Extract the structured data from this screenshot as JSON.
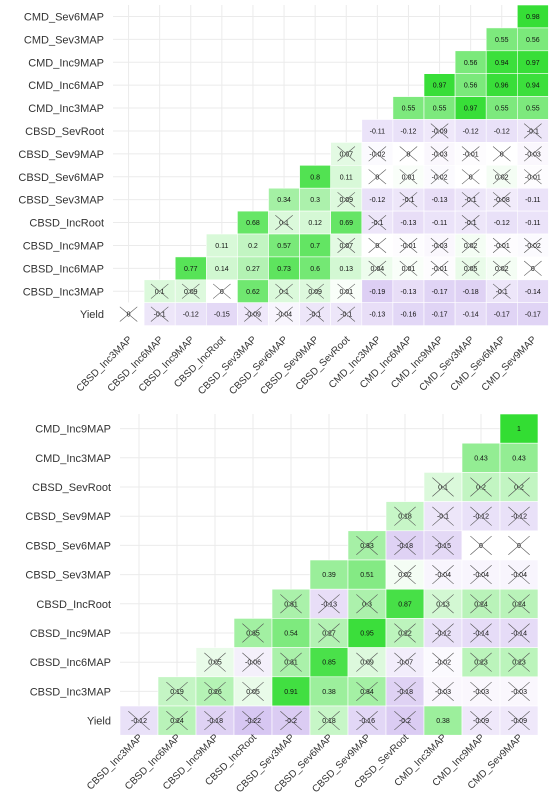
{
  "chart_data": [
    {
      "type": "heatmap",
      "title": "",
      "xlabel": "",
      "ylabel": "",
      "colors": {
        "positive": "#33dd33",
        "negative": "#a07ae0",
        "zero": "#ffffff"
      },
      "x_categories": [
        "CBSD_Inc3MAP",
        "CBSD_Inc6MAP",
        "CBSD_Inc9MAP",
        "CBSD_IncRoot",
        "CBSD_Sev3MAP",
        "CBSD_Sev6MAP",
        "CBSD_Sev9MAP",
        "CBSD_SevRoot",
        "CMD_Inc3MAP",
        "CMD_Inc6MAP",
        "CMD_Inc9MAP",
        "CMD_Sev3MAP",
        "CMD_Sev6MAP",
        "CMD_Sev9MAP"
      ],
      "y_categories": [
        "CMD_Sev6MAP",
        "CMD_Sev3MAP",
        "CMD_Inc9MAP",
        "CMD_Inc6MAP",
        "CMD_Inc3MAP",
        "CBSD_SevRoot",
        "CBSD_Sev9MAP",
        "CBSD_Sev6MAP",
        "CBSD_Sev3MAP",
        "CBSD_IncRoot",
        "CBSD_Inc9MAP",
        "CBSD_Inc6MAP",
        "CBSD_Inc3MAP",
        "Yield"
      ],
      "rows": [
        {
          "label": "CMD_Sev6MAP",
          "start": 13,
          "values": [
            0.98
          ],
          "crossed": [
            false
          ]
        },
        {
          "label": "CMD_Sev3MAP",
          "start": 12,
          "values": [
            0.55,
            0.56
          ],
          "crossed": [
            false,
            false
          ]
        },
        {
          "label": "CMD_Inc9MAP",
          "start": 11,
          "values": [
            0.56,
            0.94,
            0.97
          ],
          "crossed": [
            false,
            false,
            false
          ]
        },
        {
          "label": "CMD_Inc6MAP",
          "start": 10,
          "values": [
            0.97,
            0.56,
            0.96,
            0.94
          ],
          "crossed": [
            false,
            false,
            false,
            false
          ]
        },
        {
          "label": "CMD_Inc3MAP",
          "start": 9,
          "values": [
            0.55,
            0.55,
            0.97,
            0.55,
            0.55
          ],
          "crossed": [
            false,
            false,
            false,
            false,
            false
          ]
        },
        {
          "label": "CBSD_SevRoot",
          "start": 8,
          "values": [
            -0.11,
            -0.12,
            -0.09,
            -0.12,
            -0.12,
            -0.1
          ],
          "crossed": [
            false,
            false,
            true,
            false,
            false,
            true
          ]
        },
        {
          "label": "CBSD_Sev9MAP",
          "start": 7,
          "values": [
            0.07,
            -0.02,
            0,
            -0.03,
            -0.01,
            0,
            -0.03
          ],
          "crossed": [
            true,
            true,
            true,
            true,
            true,
            true,
            true
          ]
        },
        {
          "label": "CBSD_Sev6MAP",
          "start": 6,
          "values": [
            0.8,
            0.11,
            0,
            0.01,
            -0.02,
            0,
            0.02,
            -0.01
          ],
          "crossed": [
            false,
            false,
            true,
            true,
            true,
            true,
            true,
            true
          ]
        },
        {
          "label": "CBSD_Sev3MAP",
          "start": 5,
          "values": [
            0.34,
            0.3,
            0.09,
            -0.12,
            -0.1,
            -0.13,
            -0.1,
            -0.08,
            -0.11
          ],
          "crossed": [
            false,
            false,
            true,
            false,
            true,
            false,
            true,
            true,
            false
          ]
        },
        {
          "label": "CBSD_IncRoot",
          "start": 4,
          "values": [
            0.68,
            0.1,
            0.12,
            0.69,
            -0.1,
            -0.13,
            -0.11,
            -0.1,
            -0.12,
            -0.11
          ],
          "crossed": [
            false,
            true,
            false,
            false,
            true,
            false,
            false,
            true,
            false,
            false
          ]
        },
        {
          "label": "CBSD_Inc9MAP",
          "start": 3,
          "values": [
            0.11,
            0.2,
            0.57,
            0.7,
            0.07,
            0,
            -0.01,
            -0.03,
            0.02,
            -0.01,
            -0.02
          ],
          "crossed": [
            false,
            false,
            false,
            false,
            true,
            true,
            true,
            true,
            true,
            true,
            true
          ]
        },
        {
          "label": "CBSD_Inc6MAP",
          "start": 2,
          "values": [
            0.77,
            0.14,
            0.27,
            0.73,
            0.6,
            0.13,
            0.04,
            0.01,
            -0.01,
            0.05,
            0.02,
            0
          ],
          "crossed": [
            false,
            false,
            false,
            false,
            false,
            false,
            true,
            true,
            true,
            true,
            true,
            true
          ]
        },
        {
          "label": "CBSD_Inc3MAP",
          "start": 1,
          "values": [
            0.1,
            0.09,
            0,
            0.62,
            0.1,
            0.09,
            0.01,
            -0.19,
            -0.13,
            -0.17,
            -0.18,
            -0.1,
            -0.14
          ],
          "crossed": [
            true,
            true,
            true,
            false,
            true,
            true,
            true,
            false,
            false,
            false,
            false,
            true,
            false
          ]
        },
        {
          "label": "Yield",
          "start": 0,
          "values": [
            0,
            -0.1,
            -0.12,
            -0.15,
            -0.09,
            -0.04,
            -0.1,
            -0.1,
            -0.13,
            -0.16,
            -0.17,
            -0.14,
            -0.17,
            -0.17
          ],
          "crossed": [
            true,
            true,
            false,
            false,
            true,
            true,
            true,
            true,
            false,
            false,
            false,
            false,
            false,
            false
          ]
        }
      ]
    },
    {
      "type": "heatmap",
      "title": "",
      "xlabel": "",
      "ylabel": "",
      "colors": {
        "positive": "#33dd33",
        "negative": "#a07ae0",
        "zero": "#ffffff"
      },
      "x_categories": [
        "CBSD_Inc3MAP",
        "CBSD_Inc6MAP",
        "CBSD_Inc9MAP",
        "CBSD_IncRoot",
        "CBSD_Sev3MAP",
        "CBSD_Sev6MAP",
        "CBSD_Sev9MAP",
        "CBSD_SevRoot",
        "CMD_Inc3MAP",
        "CMD_Inc9MAP",
        "CMD_Sev9MAP"
      ],
      "y_categories": [
        "CMD_Inc9MAP",
        "CMD_Inc3MAP",
        "CBSD_SevRoot",
        "CBSD_Sev9MAP",
        "CBSD_Sev6MAP",
        "CBSD_Sev3MAP",
        "CBSD_IncRoot",
        "CBSD_Inc9MAP",
        "CBSD_Inc6MAP",
        "CBSD_Inc3MAP",
        "Yield"
      ],
      "rows": [
        {
          "label": "CMD_Inc9MAP",
          "start": 10,
          "values": [
            1
          ],
          "crossed": [
            false
          ]
        },
        {
          "label": "CMD_Inc3MAP",
          "start": 9,
          "values": [
            0.43,
            0.43
          ],
          "crossed": [
            false,
            false
          ]
        },
        {
          "label": "CBSD_SevRoot",
          "start": 8,
          "values": [
            0.1,
            0.2,
            0.2
          ],
          "crossed": [
            true,
            true,
            true
          ]
        },
        {
          "label": "CBSD_Sev9MAP",
          "start": 7,
          "values": [
            0.18,
            -0.1,
            -0.12,
            -0.12
          ],
          "crossed": [
            true,
            true,
            true,
            true
          ]
        },
        {
          "label": "CBSD_Sev6MAP",
          "start": 6,
          "values": [
            0.33,
            -0.18,
            -0.15,
            0,
            0
          ],
          "crossed": [
            true,
            true,
            true,
            true,
            true
          ]
        },
        {
          "label": "CBSD_Sev3MAP",
          "start": 5,
          "values": [
            0.39,
            0.51,
            0.02,
            -0.04,
            -0.04,
            -0.04
          ],
          "crossed": [
            false,
            false,
            true,
            true,
            true,
            true
          ]
        },
        {
          "label": "CBSD_IncRoot",
          "start": 4,
          "values": [
            0.31,
            -0.13,
            0.3,
            0.87,
            0.13,
            0.24,
            0.24
          ],
          "crossed": [
            true,
            true,
            true,
            false,
            true,
            true,
            true
          ]
        },
        {
          "label": "CBSD_Inc9MAP",
          "start": 3,
          "values": [
            0.35,
            0.54,
            0.27,
            0.95,
            0.22,
            -0.12,
            -0.14,
            -0.14
          ],
          "crossed": [
            true,
            false,
            true,
            false,
            true,
            true,
            true,
            true
          ]
        },
        {
          "label": "CBSD_Inc6MAP",
          "start": 2,
          "values": [
            0.05,
            -0.06,
            0.31,
            0.85,
            0.09,
            -0.07,
            -0.02,
            0.23,
            0.23
          ],
          "crossed": [
            true,
            true,
            true,
            false,
            true,
            true,
            true,
            true,
            true
          ]
        },
        {
          "label": "CBSD_Inc3MAP",
          "start": 1,
          "values": [
            0.19,
            0.26,
            0.05,
            0.91,
            0.38,
            0.34,
            -0.18,
            -0.03,
            -0.03,
            -0.03
          ],
          "crossed": [
            true,
            true,
            true,
            false,
            false,
            true,
            true,
            true,
            true,
            true
          ]
        },
        {
          "label": "Yield",
          "start": 0,
          "values": [
            -0.12,
            0.24,
            -0.18,
            -0.22,
            -0.2,
            0.18,
            -0.16,
            -0.2,
            0.38,
            -0.09,
            -0.09
          ],
          "crossed": [
            true,
            true,
            true,
            true,
            true,
            true,
            true,
            true,
            false,
            true,
            true
          ]
        }
      ]
    }
  ]
}
